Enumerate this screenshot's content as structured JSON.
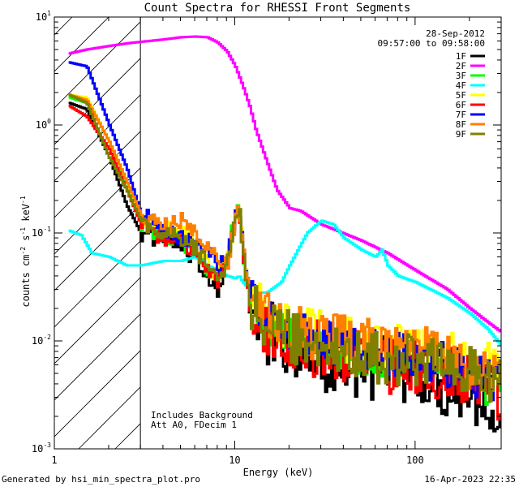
{
  "chart_data": {
    "type": "line",
    "title": "Count Spectra for RHESSI Front Segments",
    "xlabel": "Energy (keV)",
    "ylabel_main": "counts cm",
    "ylabel_sup1": "-2",
    "ylabel_mid": " s",
    "ylabel_sup2": "-1",
    "ylabel_tail": " keV",
    "ylabel_sup3": "-1",
    "xscale": "log",
    "yscale": "log",
    "xlim": [
      1,
      300
    ],
    "ylim": [
      0.001,
      10
    ],
    "x_ticks": [
      {
        "v": 1,
        "label": "1"
      },
      {
        "v": 10,
        "label": "10"
      },
      {
        "v": 100,
        "label": "100"
      }
    ],
    "y_ticks": [
      {
        "v": 0.001,
        "base": "10",
        "exp": "-3"
      },
      {
        "v": 0.01,
        "base": "10",
        "exp": "-2"
      },
      {
        "v": 0.1,
        "base": "10",
        "exp": "-1"
      },
      {
        "v": 1,
        "base": "10",
        "exp": "0"
      },
      {
        "v": 10,
        "base": "10",
        "exp": "1"
      }
    ],
    "date": "28-Sep-2012",
    "time_range": "09:57:00 to 09:58:00",
    "shaded_region_keV": [
      1,
      3
    ],
    "annotation_line1": "Includes Background",
    "annotation_line2": "Att A0, FDecim 1",
    "series": [
      {
        "name": "1F",
        "color": "#000000",
        "lw": 3,
        "noise": 0.9,
        "x": [
          1.2,
          1.5,
          2,
          2.5,
          3,
          3.5,
          4,
          4.5,
          5,
          6,
          7,
          8,
          9,
          10,
          10.5,
          11,
          12,
          15,
          20,
          30,
          40,
          60,
          100,
          150,
          200,
          250,
          300
        ],
        "y": [
          1.6,
          1.4,
          0.5,
          0.18,
          0.1,
          0.09,
          0.085,
          0.085,
          0.07,
          0.055,
          0.04,
          0.03,
          0.06,
          0.13,
          0.16,
          0.06,
          0.02,
          0.012,
          0.009,
          0.007,
          0.006,
          0.0055,
          0.005,
          0.004,
          0.0035,
          0.003,
          0.0025
        ]
      },
      {
        "name": "2F",
        "color": "#ff00ff",
        "lw": 3,
        "noise": 0.0,
        "x": [
          1.2,
          1.5,
          2,
          2.5,
          3,
          4,
          5,
          6,
          7,
          8,
          9,
          10,
          11,
          12,
          13,
          15,
          17,
          20,
          23,
          30,
          50,
          70,
          100,
          150,
          200,
          250,
          300
        ],
        "y": [
          4.6,
          5.0,
          5.4,
          5.7,
          5.9,
          6.2,
          6.5,
          6.6,
          6.5,
          5.8,
          4.8,
          3.5,
          2.3,
          1.5,
          0.9,
          0.45,
          0.25,
          0.17,
          0.16,
          0.12,
          0.085,
          0.065,
          0.045,
          0.03,
          0.02,
          0.015,
          0.012
        ]
      },
      {
        "name": "3F",
        "color": "#00ff00",
        "lw": 3,
        "noise": 0.6,
        "x": [
          1.2,
          1.5,
          2,
          2.5,
          3,
          3.5,
          4,
          4.5,
          5,
          6,
          7,
          8,
          9,
          10,
          10.5,
          11,
          12,
          15,
          20,
          30,
          40,
          60,
          100,
          150,
          200,
          250,
          300
        ],
        "y": [
          1.8,
          1.6,
          0.5,
          0.3,
          0.12,
          0.1,
          0.09,
          0.09,
          0.08,
          0.06,
          0.045,
          0.04,
          0.07,
          0.14,
          0.17,
          0.07,
          0.022,
          0.014,
          0.011,
          0.009,
          0.008,
          0.007,
          0.0065,
          0.006,
          0.005,
          0.004,
          0.0035
        ]
      },
      {
        "name": "4F",
        "color": "#00ffff",
        "lw": 3,
        "noise": 0.0,
        "x": [
          1.2,
          1.4,
          1.6,
          2,
          2.5,
          3,
          4,
          5,
          6,
          7,
          8,
          9,
          10,
          10.5,
          11,
          12,
          13,
          15,
          18,
          20,
          25,
          30,
          35,
          40,
          50,
          60,
          65,
          70,
          80,
          100,
          150,
          200,
          250,
          300
        ],
        "y": [
          0.105,
          0.095,
          0.065,
          0.06,
          0.05,
          0.05,
          0.055,
          0.055,
          0.06,
          0.05,
          0.045,
          0.04,
          0.038,
          0.04,
          0.035,
          0.03,
          0.028,
          0.028,
          0.035,
          0.05,
          0.1,
          0.13,
          0.12,
          0.09,
          0.07,
          0.06,
          0.07,
          0.05,
          0.04,
          0.035,
          0.025,
          0.018,
          0.013,
          0.009
        ]
      },
      {
        "name": "5F",
        "color": "#ffff00",
        "lw": 3,
        "noise": 0.7,
        "x": [
          1.2,
          1.5,
          2,
          2.5,
          3,
          3.5,
          4,
          4.5,
          5,
          6,
          7,
          8,
          9,
          10,
          10.5,
          11,
          12,
          15,
          20,
          30,
          40,
          60,
          100,
          150,
          200,
          250,
          300
        ],
        "y": [
          1.9,
          1.8,
          0.7,
          0.3,
          0.14,
          0.12,
          0.11,
          0.11,
          0.1,
          0.08,
          0.05,
          0.04,
          0.06,
          0.14,
          0.17,
          0.07,
          0.025,
          0.016,
          0.013,
          0.011,
          0.01,
          0.009,
          0.008,
          0.007,
          0.006,
          0.0055,
          0.005
        ]
      },
      {
        "name": "6F",
        "color": "#ff0000",
        "lw": 3,
        "noise": 0.8,
        "x": [
          1.2,
          1.5,
          2,
          2.5,
          3,
          3.5,
          4,
          4.5,
          5,
          6,
          7,
          8,
          9,
          10,
          10.5,
          11,
          12,
          15,
          20,
          30,
          40,
          60,
          100,
          150,
          200,
          250,
          300
        ],
        "y": [
          1.5,
          1.2,
          0.6,
          0.25,
          0.12,
          0.1,
          0.09,
          0.09,
          0.085,
          0.065,
          0.045,
          0.035,
          0.06,
          0.14,
          0.16,
          0.06,
          0.02,
          0.012,
          0.01,
          0.008,
          0.007,
          0.006,
          0.0055,
          0.005,
          0.004,
          0.0035,
          0.003
        ]
      },
      {
        "name": "7F",
        "color": "#0000ff",
        "lw": 3,
        "noise": 0.6,
        "x": [
          1.2,
          1.5,
          2,
          2.5,
          3,
          3.5,
          4,
          4.5,
          5,
          6,
          7,
          8,
          9,
          10,
          10.5,
          11,
          12,
          15,
          20,
          30,
          40,
          60,
          100,
          150,
          200,
          250,
          300
        ],
        "y": [
          3.8,
          3.5,
          1.0,
          0.4,
          0.15,
          0.13,
          0.1,
          0.1,
          0.09,
          0.08,
          0.07,
          0.05,
          0.06,
          0.15,
          0.17,
          0.07,
          0.025,
          0.015,
          0.012,
          0.01,
          0.009,
          0.008,
          0.007,
          0.006,
          0.005,
          0.0045,
          0.004
        ]
      },
      {
        "name": "8F",
        "color": "#ff8000",
        "lw": 3,
        "noise": 0.7,
        "x": [
          1.2,
          1.5,
          2,
          2.5,
          3,
          3.5,
          4,
          4.5,
          5,
          6,
          7,
          8,
          9,
          10,
          10.5,
          11,
          12,
          15,
          20,
          30,
          40,
          60,
          100,
          150,
          200,
          250,
          300
        ],
        "y": [
          1.9,
          1.7,
          0.7,
          0.3,
          0.15,
          0.13,
          0.12,
          0.12,
          0.13,
          0.1,
          0.08,
          0.06,
          0.05,
          0.14,
          0.17,
          0.07,
          0.025,
          0.016,
          0.013,
          0.011,
          0.01,
          0.009,
          0.008,
          0.007,
          0.006,
          0.0055,
          0.005
        ]
      },
      {
        "name": "9F",
        "color": "#808000",
        "lw": 3,
        "noise": 0.7,
        "x": [
          1.2,
          1.5,
          2,
          2.5,
          3,
          3.5,
          4,
          4.5,
          5,
          6,
          7,
          8,
          9,
          10,
          10.5,
          11,
          12,
          15,
          20,
          30,
          40,
          60,
          100,
          150,
          200,
          250,
          300
        ],
        "y": [
          1.9,
          1.6,
          0.5,
          0.25,
          0.13,
          0.11,
          0.1,
          0.1,
          0.09,
          0.07,
          0.05,
          0.04,
          0.05,
          0.13,
          0.16,
          0.06,
          0.022,
          0.014,
          0.011,
          0.009,
          0.008,
          0.007,
          0.0065,
          0.006,
          0.005,
          0.0045,
          0.004
        ]
      }
    ]
  },
  "footer": {
    "left": "Generated by hsi_min_spectra_plot.pro",
    "right": "16-Apr-2023 22:35"
  }
}
